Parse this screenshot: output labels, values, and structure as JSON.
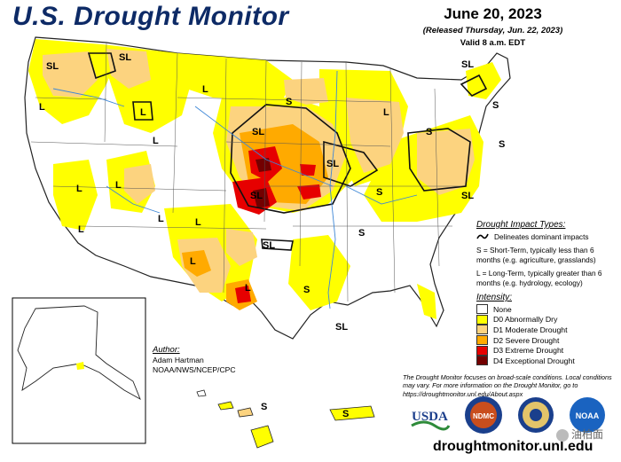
{
  "header": {
    "title": "U.S. Drought Monitor",
    "date": "June 20, 2023",
    "released": "(Released Thursday, Jun. 22, 2023)",
    "valid": "Valid 8 a.m. EDT"
  },
  "impact": {
    "title": "Drought Impact Types:",
    "line_label": "Delineates dominant impacts",
    "s_text": "S = Short-Term, typically less than 6 months (e.g. agriculture, grasslands)",
    "l_text": "L = Long-Term, typically greater than 6 months (e.g. hydrology, ecology)"
  },
  "legend": {
    "title": "Intensity:",
    "items": [
      {
        "label": "None",
        "color": "#ffffff"
      },
      {
        "label": "D0 Abnormally Dry",
        "color": "#ffff00"
      },
      {
        "label": "D1 Moderate Drought",
        "color": "#fcd37f"
      },
      {
        "label": "D2 Severe Drought",
        "color": "#ffaa00"
      },
      {
        "label": "D3 Extreme Drought",
        "color": "#e60000"
      },
      {
        "label": "D4 Exceptional Drought",
        "color": "#730000"
      }
    ]
  },
  "note": "The Drought Monitor focuses on broad-scale conditions. Local conditions may vary. For more information on the Drought Monitor, go to https://droughtmonitor.unl.edu/About.aspx",
  "author": {
    "title": "Author:",
    "name": "Adam Hartman",
    "org": "NOAA/NWS/NCEP/CPC"
  },
  "site_url": "droughtmonitor.unl.edu",
  "logos": {
    "usda": "USDA",
    "ndmc": "NDMC",
    "noaa": "NOAA"
  },
  "watermark": "油柏面",
  "map_labels": {
    "sl": "SL",
    "s": "S",
    "l": "L"
  }
}
